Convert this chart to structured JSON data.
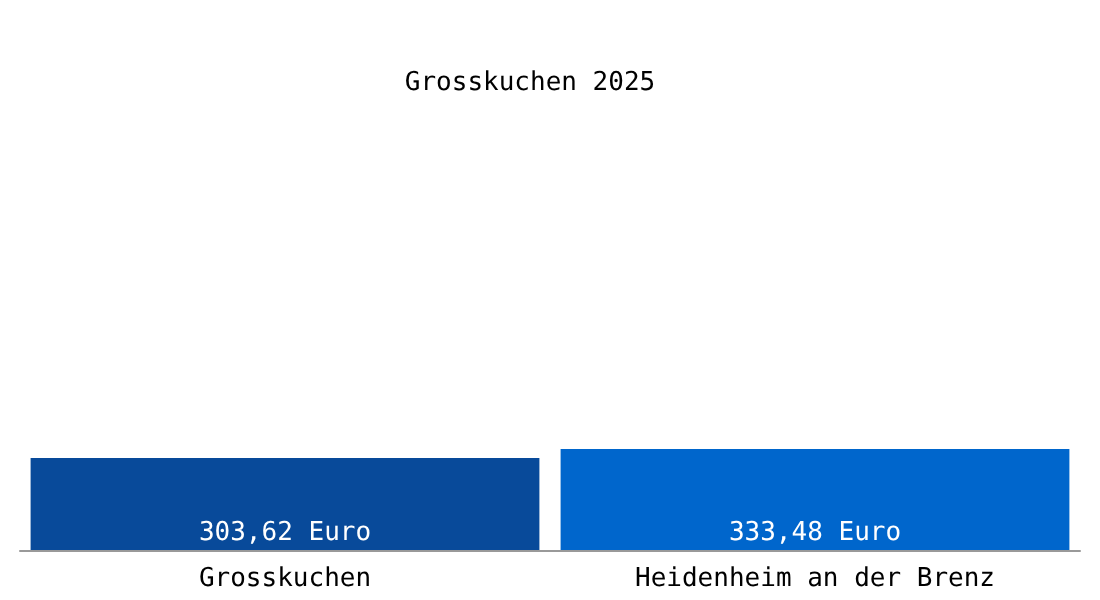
{
  "chart_data": {
    "type": "bar",
    "title": "Grosskuchen 2025",
    "categories": [
      "Grosskuchen",
      "Heidenheim an der Brenz"
    ],
    "values": [
      303.62,
      333.48
    ],
    "colors": [
      "#084a9a",
      "#0066cc"
    ],
    "value_labels": [
      "303,62 Euro",
      "333,48 Euro"
    ],
    "tick_labels": "x"
  }
}
